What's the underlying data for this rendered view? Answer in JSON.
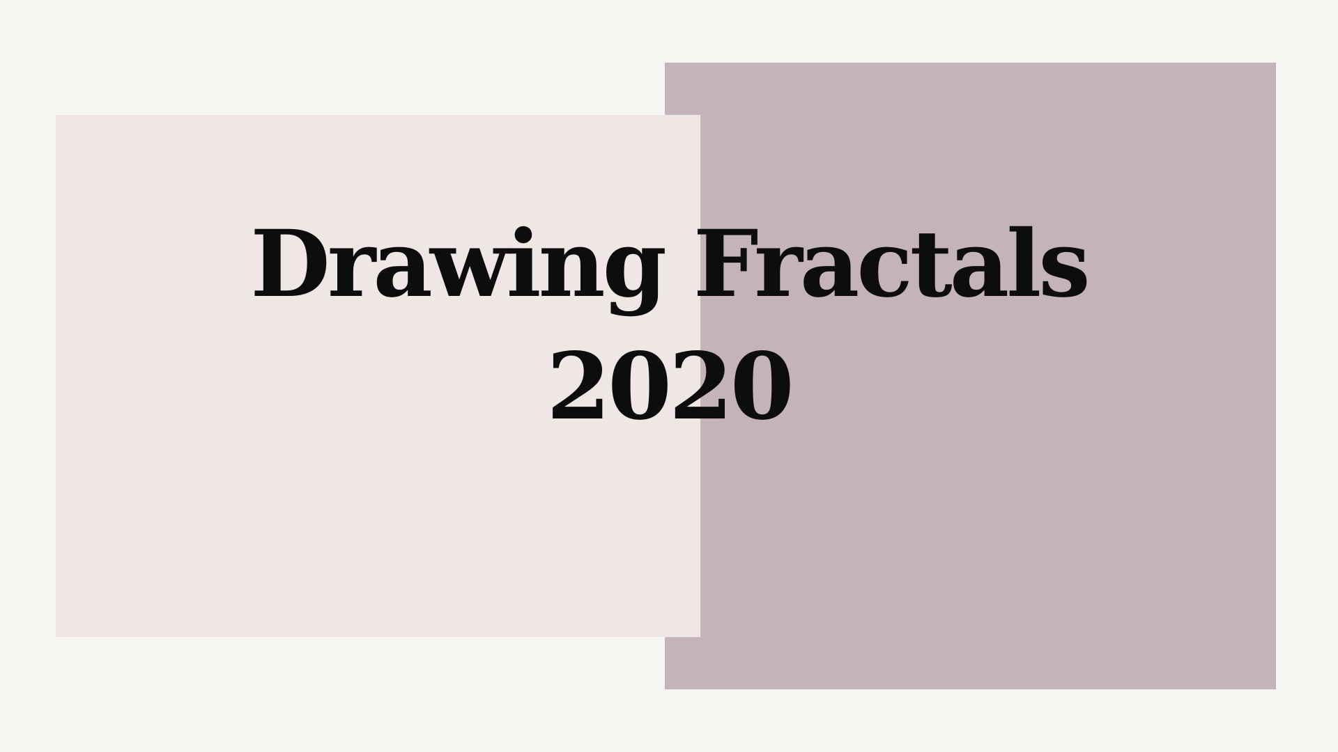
{
  "slide": {
    "title_line1": "Drawing Fractals",
    "title_line2": "2020"
  },
  "colors": {
    "background": "#f5f5f1",
    "panel_left": "#efe7e6",
    "panel_right": "#c4b3ba",
    "text": "#0d0d0d"
  }
}
